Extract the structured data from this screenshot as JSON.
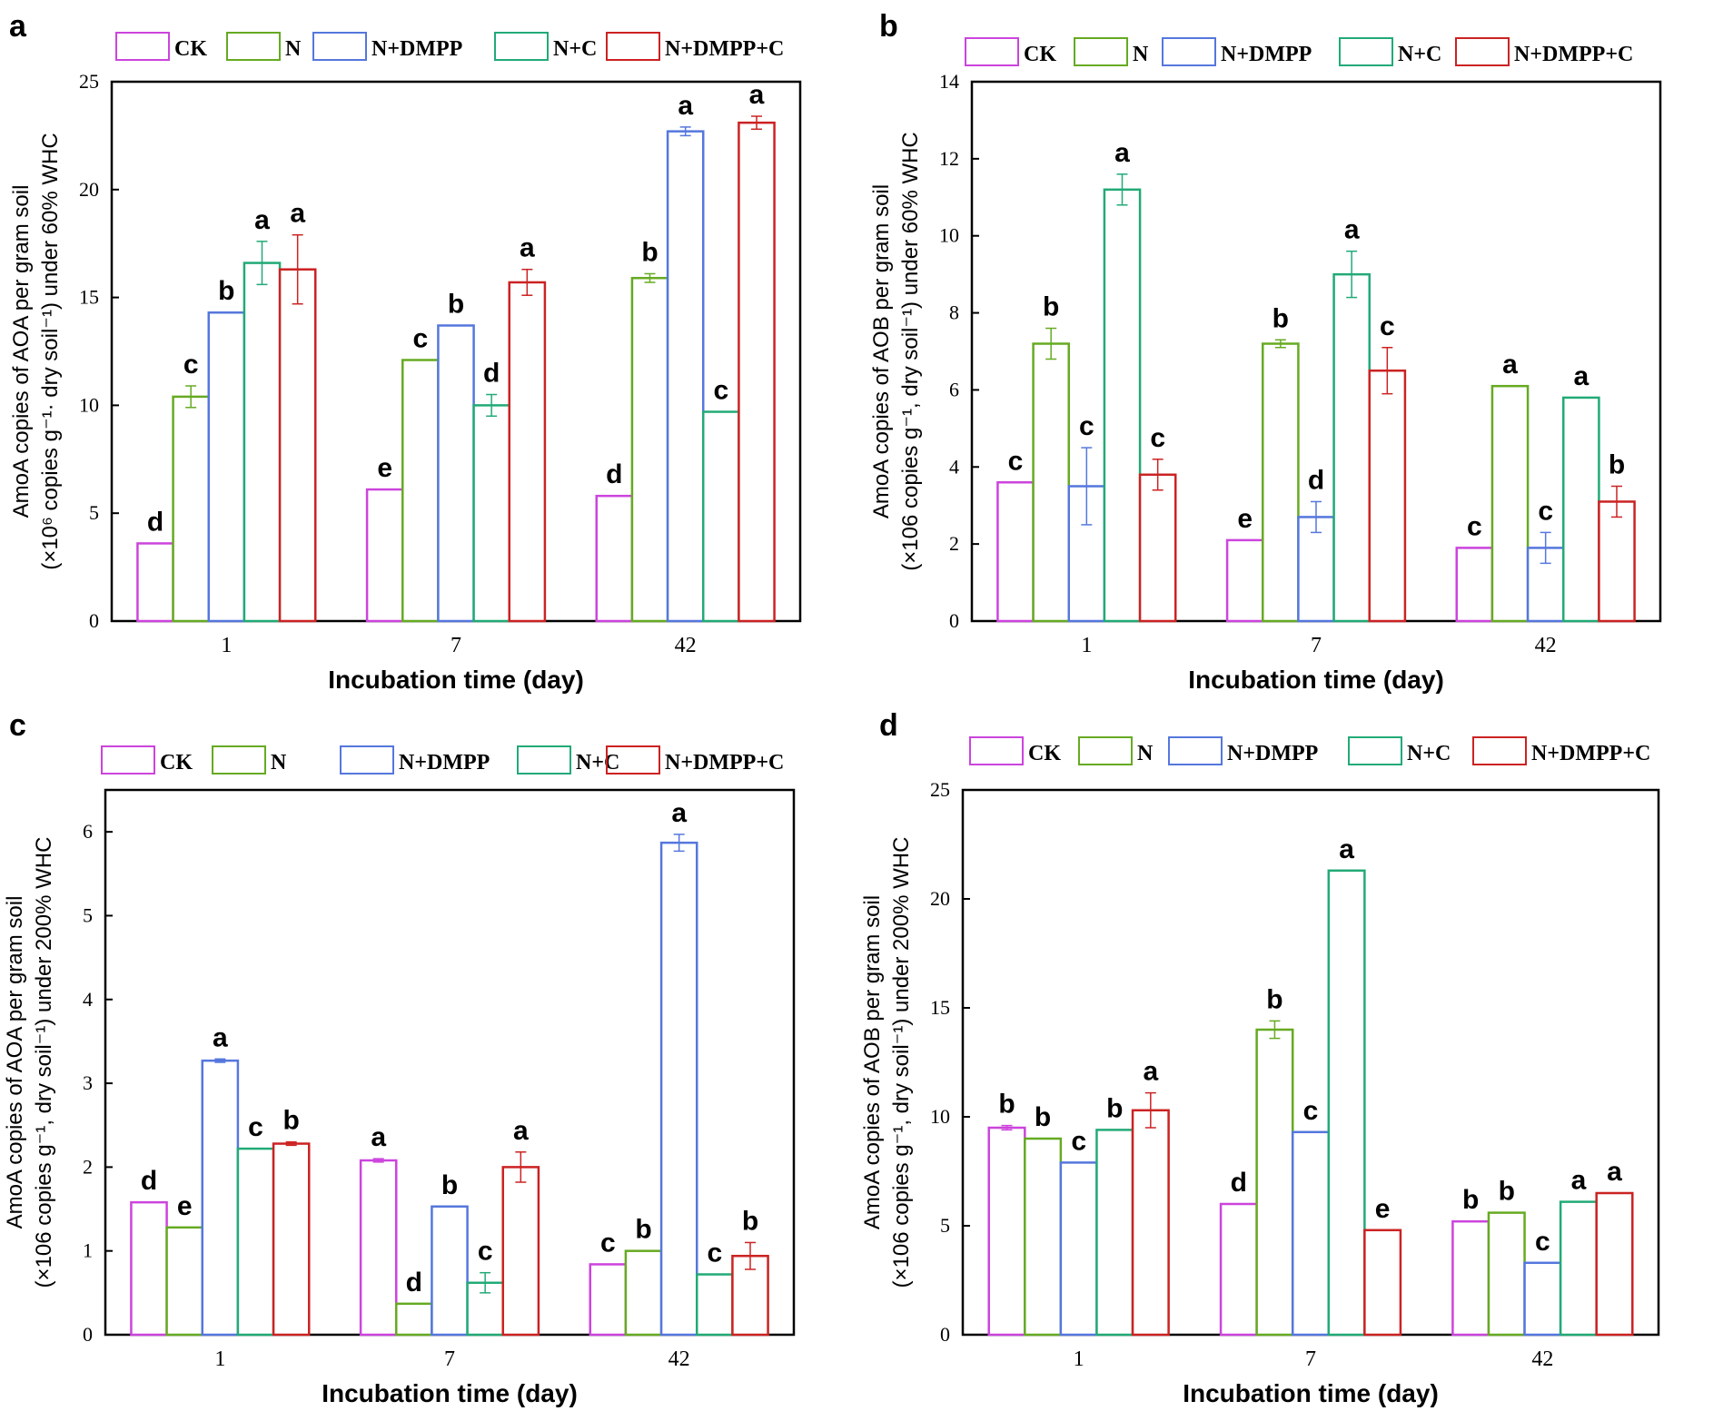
{
  "figure": {
    "categories": [
      "1",
      "7",
      "42"
    ],
    "xlabel": "Incubation time (day)",
    "legend": [
      "CK",
      "N",
      "N+DMPP",
      "N+C",
      "N+DMPP+C"
    ],
    "series_colors": [
      "#cc44dd",
      "#66aa22",
      "#5577dd",
      "#22aa77",
      "#cc2222"
    ]
  },
  "chart_data": [
    {
      "panel": "a",
      "type": "bar",
      "ylabel_line1": "AmoA copies of AOA per gram soil",
      "ylabel_line2": "(×10⁶ copies g⁻¹· dry soil⁻¹) under 60% WHC",
      "xlabel": "Incubation time (day)",
      "ylim": [
        0,
        25
      ],
      "yticks": [
        0,
        5,
        10,
        15,
        20,
        25
      ],
      "categories": [
        "1",
        "7",
        "42"
      ],
      "series": [
        {
          "name": "CK",
          "values": [
            3.6,
            6.1,
            5.8
          ],
          "errors": [
            0,
            0,
            0
          ],
          "letters": [
            "d",
            "e",
            "d"
          ]
        },
        {
          "name": "N",
          "values": [
            10.4,
            12.1,
            15.9
          ],
          "errors": [
            0.5,
            0,
            0.2
          ],
          "letters": [
            "c",
            "c",
            "b"
          ]
        },
        {
          "name": "N+DMPP",
          "values": [
            14.3,
            13.7,
            22.7
          ],
          "errors": [
            0,
            0,
            0.2
          ],
          "letters": [
            "b",
            "b",
            "a"
          ]
        },
        {
          "name": "N+C",
          "values": [
            16.6,
            10.0,
            9.7
          ],
          "errors": [
            1.0,
            0.5,
            0
          ],
          "letters": [
            "a",
            "d",
            "c"
          ]
        },
        {
          "name": "N+DMPP+C",
          "values": [
            16.3,
            15.7,
            23.1
          ],
          "errors": [
            1.6,
            0.6,
            0.3
          ],
          "letters": [
            "a",
            "a",
            "a"
          ]
        }
      ]
    },
    {
      "panel": "b",
      "type": "bar",
      "ylabel_line1": "AmoA copies of AOB per gram soil",
      "ylabel_line2": "(×106 copies g⁻¹, dry soil⁻¹) under 60% WHC",
      "xlabel": "Incubation time (day)",
      "ylim": [
        0,
        14
      ],
      "yticks": [
        0,
        2,
        4,
        6,
        8,
        10,
        12,
        14
      ],
      "categories": [
        "1",
        "7",
        "42"
      ],
      "series": [
        {
          "name": "CK",
          "values": [
            3.6,
            2.1,
            1.9
          ],
          "errors": [
            0,
            0,
            0
          ],
          "letters": [
            "c",
            "e",
            "c"
          ]
        },
        {
          "name": "N",
          "values": [
            7.2,
            7.2,
            6.1
          ],
          "errors": [
            0.4,
            0.1,
            0
          ],
          "letters": [
            "b",
            "b",
            "a"
          ]
        },
        {
          "name": "N+DMPP",
          "values": [
            3.5,
            2.7,
            1.9
          ],
          "errors": [
            1.0,
            0.4,
            0.4
          ],
          "letters": [
            "c",
            "d",
            "c"
          ]
        },
        {
          "name": "N+C",
          "values": [
            11.2,
            9.0,
            5.8
          ],
          "errors": [
            0.4,
            0.6,
            0
          ],
          "letters": [
            "a",
            "a",
            "a"
          ]
        },
        {
          "name": "N+DMPP+C",
          "values": [
            3.8,
            6.5,
            3.1
          ],
          "errors": [
            0.4,
            0.6,
            0.4
          ],
          "letters": [
            "c",
            "c",
            "b"
          ]
        }
      ]
    },
    {
      "panel": "c",
      "type": "bar",
      "ylabel_line1": "AmoA copies of AOA per gram soil",
      "ylabel_line2": "(×106 copies g⁻¹, dry soil⁻¹) under 200% WHC",
      "xlabel": "Incubation time (day)",
      "ylim": [
        0,
        6.5
      ],
      "yticks": [
        0,
        1,
        2,
        3,
        4,
        5,
        6
      ],
      "categories": [
        "1",
        "7",
        "42"
      ],
      "series": [
        {
          "name": "CK",
          "values": [
            1.58,
            2.08,
            0.84
          ],
          "errors": [
            0,
            0.02,
            0
          ],
          "letters": [
            "d",
            "a",
            "c"
          ]
        },
        {
          "name": "N",
          "values": [
            1.28,
            0.37,
            1.0
          ],
          "errors": [
            0,
            0,
            0
          ],
          "letters": [
            "e",
            "d",
            "b"
          ]
        },
        {
          "name": "N+DMPP",
          "values": [
            3.27,
            1.53,
            5.87
          ],
          "errors": [
            0.02,
            0,
            0.1
          ],
          "letters": [
            "a",
            "b",
            "a"
          ]
        },
        {
          "name": "N+C",
          "values": [
            2.22,
            0.62,
            0.72
          ],
          "errors": [
            0,
            0.12,
            0
          ],
          "letters": [
            "c",
            "c",
            "c"
          ]
        },
        {
          "name": "N+DMPP+C",
          "values": [
            2.28,
            2.0,
            0.94
          ],
          "errors": [
            0.02,
            0.18,
            0.16
          ],
          "letters": [
            "b",
            "a",
            "b"
          ]
        }
      ]
    },
    {
      "panel": "d",
      "type": "bar",
      "ylabel_line1": "AmoA copies of AOB per gram soil",
      "ylabel_line2": "(×106 copies g⁻¹, dry soil⁻¹) under 200% WHC",
      "xlabel": "Incubation time (day)",
      "ylim": [
        0,
        25
      ],
      "yticks": [
        0,
        5,
        10,
        15,
        20,
        25
      ],
      "categories": [
        "1",
        "7",
        "42"
      ],
      "series": [
        {
          "name": "CK",
          "values": [
            9.5,
            6.0,
            5.2
          ],
          "errors": [
            0.1,
            0,
            0
          ],
          "letters": [
            "b",
            "d",
            "b"
          ]
        },
        {
          "name": "N",
          "values": [
            9.0,
            14.0,
            5.6
          ],
          "errors": [
            0,
            0.4,
            0
          ],
          "letters": [
            "b",
            "b",
            "b"
          ]
        },
        {
          "name": "N+DMPP",
          "values": [
            7.9,
            9.3,
            3.3
          ],
          "errors": [
            0,
            0,
            0
          ],
          "letters": [
            "c",
            "c",
            "c"
          ]
        },
        {
          "name": "N+C",
          "values": [
            9.4,
            21.3,
            6.1
          ],
          "errors": [
            0,
            0,
            0
          ],
          "letters": [
            "b",
            "a",
            "a"
          ]
        },
        {
          "name": "N+DMPP+C",
          "values": [
            10.3,
            4.8,
            6.5
          ],
          "errors": [
            0.8,
            0,
            0
          ],
          "letters": [
            "a",
            "e",
            "a"
          ]
        }
      ]
    }
  ]
}
